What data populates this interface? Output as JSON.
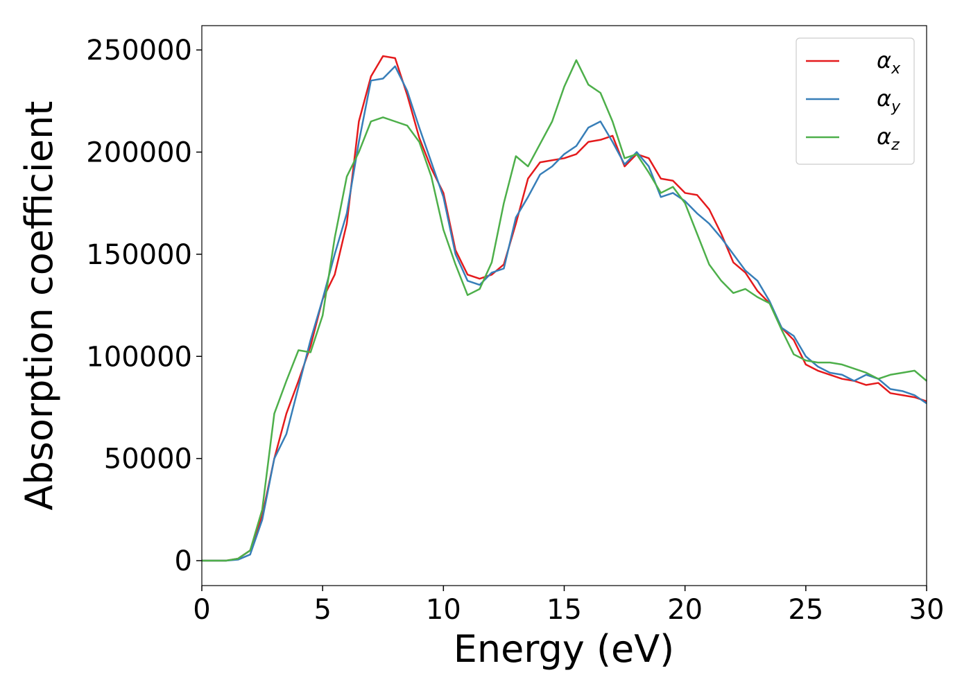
{
  "chart_data": {
    "type": "line",
    "x_label": "Energy (eV)",
    "y_label": "Absorption coefficient",
    "x": [
      0,
      0.5,
      1,
      1.5,
      2,
      2.5,
      3,
      3.5,
      4,
      4.5,
      5,
      5.5,
      6,
      6.5,
      7,
      7.5,
      8,
      8.5,
      9,
      9.5,
      10,
      10.5,
      11,
      11.5,
      12,
      12.5,
      13,
      13.5,
      14,
      14.5,
      15,
      15.5,
      16,
      16.5,
      17,
      17.5,
      18,
      18.5,
      19,
      19.5,
      20,
      20.5,
      21,
      21.5,
      22,
      22.5,
      23,
      23.5,
      24,
      24.5,
      25,
      25.5,
      26,
      26.5,
      27,
      27.5,
      28,
      28.5,
      29,
      29.5,
      30
    ],
    "series": [
      {
        "name": "αx",
        "color": "#e41a1c",
        "values": [
          0,
          0,
          0,
          1000,
          5000,
          22000,
          50000,
          72000,
          88000,
          105000,
          128000,
          140000,
          165000,
          215000,
          237000,
          247000,
          246000,
          228000,
          207000,
          192000,
          180000,
          152000,
          140000,
          138000,
          140000,
          145000,
          165000,
          187000,
          195000,
          196000,
          197000,
          199000,
          205000,
          206000,
          208000,
          193000,
          199000,
          197000,
          187000,
          186000,
          180000,
          179000,
          172000,
          160000,
          146000,
          141000,
          132000,
          126000,
          114000,
          108000,
          96000,
          93000,
          91000,
          89000,
          88000,
          86000,
          87000,
          82000,
          81000,
          80000,
          78000
        ]
      },
      {
        "name": "αy",
        "color": "#377eb8",
        "values": [
          0,
          0,
          0,
          500,
          3000,
          20000,
          50000,
          62000,
          85000,
          108000,
          128000,
          150000,
          170000,
          205000,
          235000,
          236000,
          242000,
          230000,
          212000,
          195000,
          178000,
          150000,
          137000,
          135000,
          141000,
          143000,
          168000,
          178000,
          189000,
          193000,
          199000,
          203000,
          212000,
          215000,
          205000,
          194000,
          200000,
          193000,
          178000,
          180000,
          176000,
          170000,
          165000,
          158000,
          150000,
          142000,
          137000,
          127000,
          114000,
          110000,
          100000,
          95000,
          92000,
          91000,
          88000,
          91000,
          89000,
          84000,
          83000,
          81000,
          77000
        ]
      },
      {
        "name": "αz",
        "color": "#4daf4a",
        "values": [
          0,
          0,
          0,
          1000,
          5000,
          25000,
          72000,
          88000,
          103000,
          102000,
          120000,
          158000,
          188000,
          200000,
          215000,
          217000,
          215000,
          213000,
          205000,
          188000,
          162000,
          145000,
          130000,
          133000,
          146000,
          175000,
          198000,
          193000,
          204000,
          215000,
          232000,
          245000,
          233000,
          229000,
          215000,
          197000,
          199000,
          190000,
          180000,
          183000,
          175000,
          160000,
          145000,
          137000,
          131000,
          133000,
          129000,
          126000,
          113000,
          101000,
          98000,
          97000,
          97000,
          96000,
          94000,
          92000,
          89000,
          91000,
          92000,
          93000,
          88000
        ]
      }
    ],
    "xlim": [
      0,
      30
    ],
    "xticks": [
      0,
      5,
      10,
      15,
      20,
      25,
      30
    ],
    "ylim": [
      -12200,
      261900
    ],
    "yticks": [
      0,
      50000,
      100000,
      150000,
      200000,
      250000
    ],
    "legend": "upper right",
    "grid": false
  }
}
